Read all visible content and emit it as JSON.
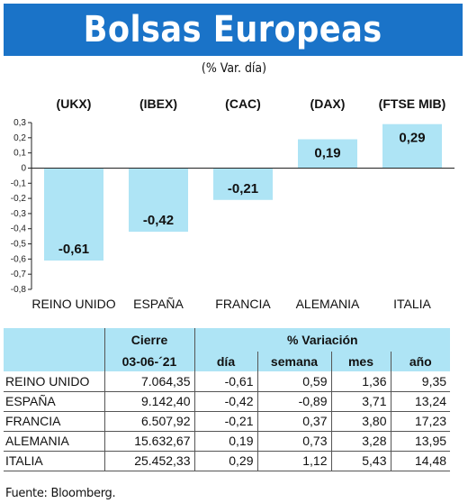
{
  "header": {
    "title": "Bolsas Europeas",
    "subtitle": "(% Var. día)"
  },
  "colors": {
    "title_bg": "#1a73c8",
    "bar": "#aee4f5",
    "table_header": "#aee4f5"
  },
  "chart_data": {
    "type": "bar",
    "indices": [
      "(UKX)",
      "(IBEX)",
      "(CAC)",
      "(DAX)",
      "(FTSE MIB)"
    ],
    "categories": [
      "REINO UNIDO",
      "ESPAÑA",
      "FRANCIA",
      "ALEMANIA",
      "ITALIA"
    ],
    "values": [
      -0.61,
      -0.42,
      -0.21,
      0.19,
      0.29
    ],
    "value_labels": [
      "-0,61",
      "-0,42",
      "-0,21",
      "0,19",
      "0,29"
    ],
    "ylim": [
      -0.8,
      0.3
    ],
    "yticks": [
      0.3,
      0.2,
      0.1,
      0,
      -0.1,
      -0.2,
      -0.3,
      -0.4,
      -0.5,
      -0.6,
      -0.7,
      -0.8
    ],
    "ytick_labels": [
      "0,3",
      "0,2",
      "0,1",
      "0",
      "-0,1",
      "-0,2",
      "-0,3",
      "-0,4",
      "-0,5",
      "-0,6",
      "-0,7",
      "-0,8"
    ],
    "grid": false,
    "legend": "none"
  },
  "table": {
    "group_headers": {
      "close": "Cierre",
      "variation": "% Variación"
    },
    "sub_headers": {
      "date": "03-06-´21",
      "day": "día",
      "week": "semana",
      "month": "mes",
      "year": "año"
    },
    "rows": [
      {
        "country": "REINO UNIDO",
        "close": "7.064,35",
        "day": "-0,61",
        "week": "0,59",
        "month": "1,36",
        "year": "9,35"
      },
      {
        "country": "ESPAÑA",
        "close": "9.142,40",
        "day": "-0,42",
        "week": "-0,89",
        "month": "3,71",
        "year": "13,24"
      },
      {
        "country": "FRANCIA",
        "close": "6.507,92",
        "day": "-0,21",
        "week": "0,37",
        "month": "3,80",
        "year": "17,23"
      },
      {
        "country": "ALEMANIA",
        "close": "15.632,67",
        "day": "0,19",
        "week": "0,73",
        "month": "3,28",
        "year": "13,95"
      },
      {
        "country": "ITALIA",
        "close": "25.452,33",
        "day": "0,29",
        "week": "1,12",
        "month": "5,43",
        "year": "14,48"
      }
    ]
  },
  "source": "Fuente: Bloomberg."
}
